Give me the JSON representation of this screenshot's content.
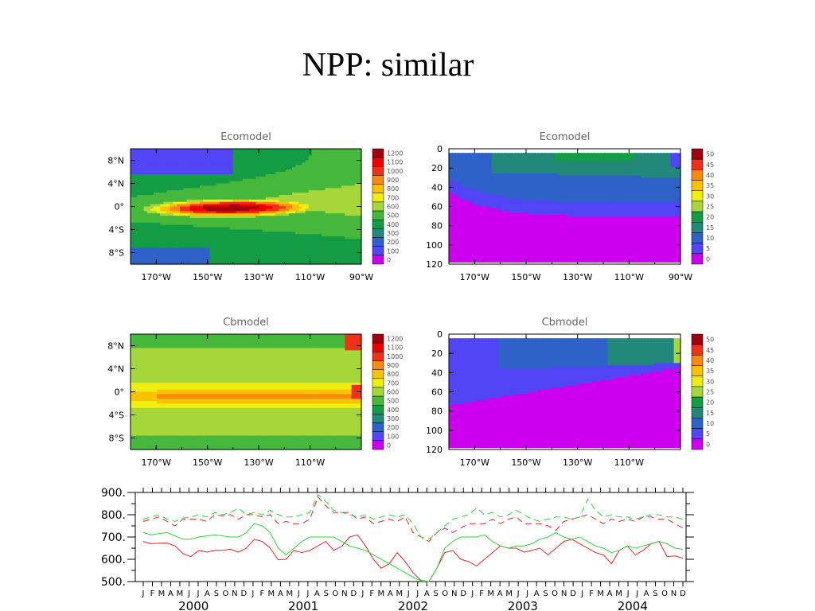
{
  "slide": {
    "title": "NPP: similar"
  },
  "chart_data": [
    {
      "type": "heatmap",
      "title": "Ecomodel",
      "x_ticks": [
        "170°W",
        "150°W",
        "130°W",
        "110°W",
        "90°W"
      ],
      "x_range": [
        -180,
        -90
      ],
      "y_ticks": [
        "8°N",
        "4°N",
        "0°",
        "4°S",
        "8°S"
      ],
      "y_range": [
        -10,
        10
      ],
      "colorbar": [
        "1200",
        "1100",
        "1000",
        "900",
        "800",
        "700",
        "600",
        "500",
        "400",
        "300",
        "200",
        "100",
        "0"
      ],
      "field": "map_eco"
    },
    {
      "type": "heatmap",
      "title": "Ecomodel",
      "x_ticks": [
        "170°W",
        "150°W",
        "130°W",
        "110°W",
        "90°W"
      ],
      "x_range": [
        -180,
        -90
      ],
      "y_ticks": [
        "0",
        "20",
        "40",
        "60",
        "80",
        "100",
        "120"
      ],
      "y_range": [
        0,
        120
      ],
      "colorbar": [
        "50",
        "45",
        "40",
        "35",
        "30",
        "25",
        "20",
        "15",
        "10",
        "5",
        "0"
      ],
      "field": "depth_eco"
    },
    {
      "type": "heatmap",
      "title": "Cbmodel",
      "x_ticks": [
        "170°W",
        "150°W",
        "130°W",
        "110°W"
      ],
      "x_range": [
        -180,
        -90
      ],
      "y_ticks": [
        "8°N",
        "4°N",
        "0°",
        "4°S",
        "8°S"
      ],
      "y_range": [
        -10,
        10
      ],
      "colorbar": [
        "1200",
        "1100",
        "1000",
        "900",
        "800",
        "700",
        "600",
        "500",
        "400",
        "300",
        "200",
        "100",
        "0"
      ],
      "field": "map_cb"
    },
    {
      "type": "heatmap",
      "title": "Cbmodel",
      "x_ticks": [
        "170°W",
        "150°W",
        "130°W",
        "110°W"
      ],
      "x_range": [
        -180,
        -90
      ],
      "y_ticks": [
        "0",
        "20",
        "40",
        "60",
        "80",
        "100",
        "120"
      ],
      "y_range": [
        0,
        120
      ],
      "colorbar": [
        "50",
        "45",
        "40",
        "35",
        "30",
        "25",
        "20",
        "15",
        "10",
        "5",
        "0"
      ],
      "field": "depth_cb"
    },
    {
      "type": "line",
      "title": "",
      "y_ticks": [
        "900.",
        "800.",
        "700.",
        "600.",
        "500."
      ],
      "ylim": [
        500,
        900
      ],
      "month_labels": [
        "J",
        "F",
        "M",
        "A",
        "M",
        "J",
        "J",
        "A",
        "S",
        "O",
        "N",
        "D"
      ],
      "years": [
        "2000",
        "2001",
        "2002",
        "2003",
        "2004"
      ],
      "colors": {
        "red": "#e8262b",
        "green": "#33d13d"
      },
      "series": [
        {
          "color": "red",
          "dash": false,
          "values": [
            680,
            670,
            672,
            673,
            660,
            625,
            612,
            640,
            632,
            640,
            640,
            645,
            632,
            650,
            690,
            680,
            650,
            598,
            600,
            640,
            630,
            640,
            660,
            680,
            640,
            658,
            700,
            710,
            660,
            600,
            560,
            580,
            630,
            590,
            540,
            505,
            500,
            560,
            630,
            640,
            600,
            590,
            570,
            600,
            630,
            660,
            650,
            650,
            632,
            640,
            650,
            620,
            650,
            680,
            690,
            670,
            650,
            630,
            620,
            580,
            640,
            660,
            620,
            640,
            670,
            680,
            612,
            615,
            605
          ]
        },
        {
          "color": "green",
          "dash": false,
          "values": [
            720,
            710,
            715,
            720,
            705,
            690,
            690,
            700,
            705,
            710,
            705,
            700,
            700,
            720,
            760,
            750,
            720,
            650,
            620,
            650,
            680,
            700,
            700,
            700,
            700,
            680,
            660,
            650,
            640,
            620,
            600,
            580,
            560,
            540,
            520,
            502,
            500,
            560,
            650,
            680,
            700,
            700,
            700,
            710,
            680,
            660,
            650,
            660,
            660,
            670,
            690,
            700,
            720,
            700,
            690,
            700,
            680,
            660,
            650,
            630,
            640,
            660,
            650,
            660,
            670,
            680,
            670,
            650,
            645
          ]
        },
        {
          "color": "red",
          "dash": true,
          "values": [
            770,
            780,
            790,
            770,
            750,
            780,
            780,
            780,
            770,
            800,
            795,
            800,
            780,
            800,
            800,
            790,
            800,
            760,
            770,
            760,
            760,
            780,
            880,
            840,
            810,
            810,
            810,
            780,
            790,
            760,
            770,
            780,
            770,
            790,
            720,
            700,
            680,
            720,
            740,
            720,
            740,
            760,
            760,
            760,
            780,
            760,
            780,
            790,
            760,
            760,
            760,
            750,
            730,
            770,
            780,
            790,
            800,
            780,
            760,
            780,
            770,
            780,
            770,
            790,
            790,
            780,
            780,
            760,
            740
          ]
        },
        {
          "color": "green",
          "dash": true,
          "values": [
            780,
            790,
            800,
            780,
            770,
            785,
            790,
            800,
            790,
            810,
            800,
            810,
            830,
            800,
            810,
            800,
            820,
            800,
            790,
            790,
            800,
            810,
            890,
            860,
            820,
            810,
            800,
            790,
            800,
            780,
            790,
            800,
            790,
            800,
            760,
            700,
            690,
            720,
            750,
            780,
            790,
            800,
            830,
            800,
            810,
            790,
            800,
            820,
            800,
            780,
            770,
            780,
            790,
            790,
            780,
            790,
            870,
            820,
            790,
            800,
            790,
            790,
            780,
            790,
            800,
            800,
            790,
            790,
            780
          ]
        }
      ]
    }
  ]
}
